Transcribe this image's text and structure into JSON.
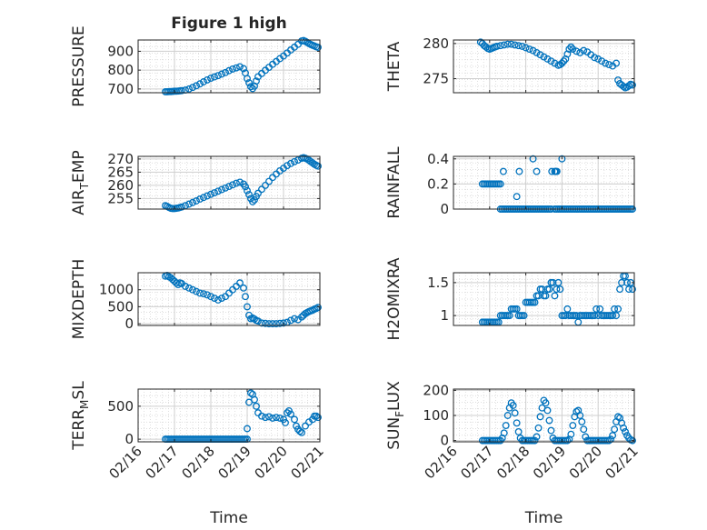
{
  "figure": {
    "title": "Figure 1 high",
    "marker_color": "#0072BD",
    "x_tick_labels": [
      "02/16",
      "02/17",
      "02/18",
      "02/19",
      "02/20",
      "02/21"
    ],
    "x_label": "Time"
  },
  "chart_data": [
    {
      "type": "scatter",
      "ylabel_main": "PRESSURE",
      "ylabel_sub": "",
      "title": "Figure 1 high",
      "xlim": [
        0,
        5
      ],
      "ylim": [
        680,
        960
      ],
      "yticks": [
        700,
        800,
        900
      ],
      "ytick_labels": [
        "700",
        "800",
        "900"
      ],
      "xlabel": "",
      "grid": true,
      "x": [
        0.75,
        0.8,
        0.85,
        0.9,
        0.95,
        1.0,
        1.05,
        1.1,
        1.15,
        1.2,
        1.3,
        1.4,
        1.5,
        1.6,
        1.7,
        1.8,
        1.9,
        2.0,
        2.1,
        2.2,
        2.3,
        2.4,
        2.5,
        2.6,
        2.7,
        2.8,
        2.9,
        2.95,
        3.0,
        3.05,
        3.1,
        3.15,
        3.2,
        3.25,
        3.3,
        3.4,
        3.5,
        3.6,
        3.7,
        3.8,
        3.9,
        4.0,
        4.1,
        4.2,
        4.3,
        4.4,
        4.5,
        4.55,
        4.6,
        4.65,
        4.7,
        4.75,
        4.8,
        4.85,
        4.9,
        4.95
      ],
      "y": [
        685,
        685,
        686,
        686,
        687,
        688,
        688,
        689,
        690,
        691,
        694,
        700,
        708,
        717,
        727,
        738,
        748,
        757,
        764,
        771,
        779,
        787,
        797,
        806,
        812,
        818,
        808,
        785,
        755,
        733,
        712,
        702,
        715,
        742,
        765,
        782,
        799,
        815,
        831,
        846,
        861,
        875,
        891,
        907,
        922,
        937,
        955,
        957,
        953,
        947,
        941,
        936,
        932,
        928,
        924,
        921
      ]
    },
    {
      "type": "scatter",
      "ylabel_main": "THETA",
      "ylabel_sub": "",
      "xlim": [
        0,
        5
      ],
      "ylim": [
        273,
        280.5
      ],
      "yticks": [
        275,
        280
      ],
      "ytick_labels": [
        "275",
        "280"
      ],
      "xlabel": "",
      "grid": true,
      "x": [
        0.75,
        0.8,
        0.85,
        0.9,
        0.95,
        1.0,
        1.05,
        1.1,
        1.15,
        1.2,
        1.3,
        1.4,
        1.5,
        1.6,
        1.7,
        1.8,
        1.9,
        2.0,
        2.1,
        2.2,
        2.3,
        2.4,
        2.5,
        2.6,
        2.7,
        2.8,
        2.9,
        2.95,
        3.0,
        3.05,
        3.1,
        3.15,
        3.2,
        3.25,
        3.3,
        3.4,
        3.5,
        3.6,
        3.7,
        3.8,
        3.9,
        4.0,
        4.1,
        4.2,
        4.3,
        4.4,
        4.5,
        4.55,
        4.6,
        4.65,
        4.7,
        4.75,
        4.8,
        4.85,
        4.9,
        4.95
      ],
      "y": [
        280.2,
        280.0,
        279.7,
        279.5,
        279.3,
        279.2,
        279.3,
        279.4,
        279.5,
        279.6,
        279.7,
        279.8,
        279.9,
        279.9,
        279.8,
        279.7,
        279.6,
        279.4,
        279.2,
        279.0,
        278.7,
        278.4,
        278.1,
        277.8,
        277.5,
        277.2,
        276.9,
        277.0,
        277.2,
        277.5,
        277.8,
        278.5,
        279.2,
        279.5,
        279.2,
        278.9,
        278.7,
        279.0,
        278.8,
        278.4,
        278.0,
        277.8,
        277.5,
        277.2,
        277.0,
        276.8,
        277.2,
        274.8,
        274.3,
        274.1,
        273.9,
        273.7,
        273.8,
        274.0,
        274.2,
        274.1
      ]
    },
    {
      "type": "scatter",
      "ylabel_main": "AIR",
      "ylabel_sub": "T",
      "ylabel_tail": "EMP",
      "xlim": [
        0,
        5
      ],
      "ylim": [
        251,
        271
      ],
      "yticks": [
        255,
        260,
        265,
        270
      ],
      "ytick_labels": [
        "255",
        "260",
        "265",
        "270"
      ],
      "xlabel": "",
      "grid": true,
      "x": [
        0.75,
        0.8,
        0.85,
        0.9,
        0.95,
        1.0,
        1.05,
        1.1,
        1.15,
        1.2,
        1.3,
        1.4,
        1.5,
        1.6,
        1.7,
        1.8,
        1.9,
        2.0,
        2.1,
        2.2,
        2.3,
        2.4,
        2.5,
        2.6,
        2.7,
        2.8,
        2.9,
        2.95,
        3.0,
        3.05,
        3.1,
        3.15,
        3.2,
        3.25,
        3.3,
        3.4,
        3.5,
        3.6,
        3.7,
        3.8,
        3.9,
        4.0,
        4.1,
        4.2,
        4.3,
        4.4,
        4.5,
        4.55,
        4.6,
        4.65,
        4.7,
        4.75,
        4.8,
        4.85,
        4.9,
        4.95
      ],
      "y": [
        252.3,
        252.0,
        251.6,
        251.3,
        251.2,
        251.2,
        251.3,
        251.4,
        251.6,
        251.8,
        252.3,
        252.9,
        253.5,
        254.1,
        254.8,
        255.4,
        256.0,
        256.6,
        257.2,
        257.8,
        258.4,
        259.0,
        259.6,
        260.2,
        260.8,
        261.2,
        260.5,
        259.5,
        258.0,
        256.5,
        255.0,
        253.8,
        254.5,
        255.8,
        257.0,
        258.5,
        260.0,
        261.5,
        263.0,
        264.3,
        265.5,
        266.5,
        267.5,
        268.3,
        269.0,
        269.6,
        270.3,
        270.5,
        270.3,
        270.0,
        269.5,
        269.0,
        268.5,
        268.0,
        267.6,
        267.3
      ]
    },
    {
      "type": "scatter",
      "ylabel_main": "RAINFALL",
      "ylabel_sub": "",
      "xlim": [
        0,
        5
      ],
      "ylim": [
        0,
        0.42
      ],
      "yticks": [
        0,
        0.2,
        0.4
      ],
      "ytick_labels": [
        "0",
        "0.2",
        "0.4"
      ],
      "xlabel": "",
      "grid": true,
      "x": [
        0.8,
        0.85,
        0.9,
        0.95,
        1.0,
        1.05,
        1.1,
        1.15,
        1.2,
        1.25,
        1.3,
        1.3,
        1.35,
        1.4,
        1.45,
        1.5,
        1.55,
        1.6,
        1.65,
        1.7,
        1.75,
        1.8,
        1.85,
        1.9,
        1.95,
        2.0,
        2.05,
        2.1,
        2.15,
        2.2,
        2.25,
        2.3,
        2.35,
        2.4,
        2.45,
        2.5,
        2.55,
        2.6,
        2.65,
        2.7,
        2.8,
        2.85,
        2.9,
        2.95,
        3.0,
        3.05,
        3.1,
        3.15,
        3.2,
        3.25,
        3.3,
        3.35,
        3.4,
        3.45,
        3.5,
        3.55,
        3.6,
        3.65,
        3.7,
        3.75,
        3.8,
        3.85,
        3.9,
        3.95,
        4.0,
        4.05,
        4.1,
        4.15,
        4.2,
        4.25,
        4.3,
        4.35,
        4.4,
        4.45,
        4.5,
        4.55,
        4.6,
        4.65,
        4.7,
        4.75,
        4.8,
        4.85,
        4.9,
        4.95,
        1.38,
        1.75,
        1.82,
        2.2,
        2.3,
        2.72,
        2.8,
        2.83,
        2.86,
        3.0
      ],
      "y": [
        0.2,
        0.2,
        0.2,
        0.2,
        0.2,
        0.2,
        0.2,
        0.2,
        0.2,
        0.2,
        0.2,
        0,
        0,
        0,
        0,
        0,
        0,
        0,
        0,
        0,
        0,
        0,
        0,
        0,
        0,
        0,
        0,
        0,
        0,
        0,
        0,
        0,
        0,
        0,
        0,
        0,
        0,
        0,
        0,
        0,
        0,
        0,
        0,
        0,
        0,
        0,
        0,
        0,
        0,
        0,
        0,
        0,
        0,
        0,
        0,
        0,
        0,
        0,
        0,
        0,
        0,
        0,
        0,
        0,
        0,
        0,
        0,
        0,
        0,
        0,
        0,
        0,
        0,
        0,
        0,
        0,
        0,
        0,
        0,
        0,
        0,
        0,
        0,
        0,
        0.3,
        0.1,
        0.3,
        0.4,
        0.3,
        0.3,
        0.3,
        0.3,
        0.3,
        0.4
      ]
    },
    {
      "type": "scatter",
      "ylabel_main": "MIXDEPTH",
      "ylabel_sub": "",
      "xlim": [
        0,
        5
      ],
      "ylim": [
        -50,
        1500
      ],
      "yticks": [
        0,
        500,
        1000
      ],
      "ytick_labels": [
        "0",
        "500",
        "1000"
      ],
      "xlabel": "",
      "grid": true,
      "x": [
        0.75,
        0.8,
        0.85,
        0.9,
        0.95,
        1.0,
        1.05,
        1.1,
        1.15,
        1.2,
        1.3,
        1.4,
        1.5,
        1.6,
        1.7,
        1.8,
        1.9,
        2.0,
        2.1,
        2.2,
        2.3,
        2.4,
        2.5,
        2.6,
        2.7,
        2.8,
        2.9,
        2.95,
        3.0,
        3.05,
        3.1,
        3.15,
        3.2,
        3.25,
        3.3,
        3.4,
        3.5,
        3.6,
        3.7,
        3.8,
        3.9,
        4.0,
        4.1,
        4.2,
        4.3,
        4.4,
        4.5,
        4.55,
        4.6,
        4.65,
        4.7,
        4.75,
        4.8,
        4.85,
        4.9,
        4.95
      ],
      "y": [
        1400,
        1420,
        1380,
        1350,
        1300,
        1250,
        1200,
        1150,
        1200,
        1180,
        1100,
        1050,
        1000,
        950,
        900,
        880,
        850,
        800,
        750,
        700,
        750,
        800,
        900,
        1000,
        1100,
        1200,
        1050,
        800,
        500,
        250,
        150,
        170,
        140,
        100,
        80,
        20,
        10,
        0,
        0,
        0,
        10,
        20,
        40,
        100,
        150,
        120,
        200,
        250,
        300,
        330,
        360,
        380,
        400,
        430,
        450,
        480
      ]
    },
    {
      "type": "scatter",
      "ylabel_main": "H2OMIXRA",
      "ylabel_sub": "",
      "xlim": [
        0,
        5
      ],
      "ylim": [
        0.85,
        1.65
      ],
      "yticks": [
        1,
        1.5
      ],
      "ytick_labels": [
        "1",
        "1.5"
      ],
      "xlabel": "",
      "grid": true,
      "x": [
        0.8,
        0.85,
        0.9,
        0.95,
        1.0,
        1.05,
        1.1,
        1.15,
        1.2,
        1.25,
        1.3,
        1.35,
        1.4,
        1.45,
        1.5,
        1.55,
        1.6,
        1.65,
        1.7,
        1.75,
        1.8,
        1.85,
        1.9,
        1.95,
        2.0,
        2.05,
        2.1,
        2.15,
        2.2,
        2.25,
        2.3,
        2.35,
        2.4,
        2.45,
        2.5,
        2.55,
        2.6,
        2.65,
        2.7,
        2.75,
        2.8,
        2.85,
        2.9,
        2.95,
        3.0,
        3.05,
        3.1,
        3.15,
        3.2,
        3.25,
        3.3,
        3.35,
        3.4,
        3.45,
        3.5,
        3.55,
        3.6,
        3.65,
        3.7,
        3.75,
        3.8,
        3.85,
        3.9,
        3.95,
        4.0,
        4.05,
        4.1,
        4.15,
        4.2,
        4.25,
        4.3,
        4.35,
        4.4,
        4.45,
        4.5,
        4.55,
        4.6,
        4.65,
        4.7,
        4.75,
        4.8,
        4.85,
        4.9,
        4.95
      ],
      "y": [
        0.9,
        0.9,
        0.9,
        0.9,
        0.9,
        0.9,
        0.9,
        0.9,
        0.9,
        0.9,
        1.0,
        1.0,
        1.0,
        1.0,
        1.0,
        1.0,
        1.1,
        1.1,
        1.1,
        1.1,
        1.0,
        1.0,
        1.0,
        1.0,
        1.2,
        1.2,
        1.2,
        1.2,
        1.2,
        1.2,
        1.3,
        1.3,
        1.4,
        1.4,
        1.3,
        1.3,
        1.4,
        1.4,
        1.5,
        1.5,
        1.3,
        1.4,
        1.5,
        1.4,
        1.0,
        1.0,
        1.0,
        1.1,
        1.0,
        1.0,
        1.0,
        1.0,
        1.0,
        0.9,
        1.0,
        1.0,
        1.0,
        1.0,
        1.0,
        1.0,
        1.0,
        1.0,
        1.0,
        1.1,
        1.0,
        1.1,
        1.0,
        1.0,
        1.0,
        1.0,
        1.0,
        1.0,
        1.0,
        1.1,
        1.0,
        1.1,
        1.4,
        1.5,
        1.6,
        1.6,
        1.5,
        1.4,
        1.5,
        1.4
      ]
    },
    {
      "type": "scatter",
      "ylabel_main": "TERR",
      "ylabel_sub": "M",
      "ylabel_tail": "SL",
      "xlim": [
        0,
        5
      ],
      "ylim": [
        -40,
        760
      ],
      "yticks": [
        0,
        500
      ],
      "ytick_labels": [
        "0",
        "500"
      ],
      "xlabel": "Time",
      "grid": true,
      "x": [
        0.75,
        0.8,
        0.85,
        0.9,
        0.95,
        1.0,
        1.05,
        1.1,
        1.15,
        1.2,
        1.25,
        1.3,
        1.35,
        1.4,
        1.45,
        1.5,
        1.55,
        1.6,
        1.65,
        1.7,
        1.75,
        1.8,
        1.85,
        1.9,
        1.95,
        2.0,
        2.05,
        2.1,
        2.15,
        2.2,
        2.25,
        2.3,
        2.35,
        2.4,
        2.45,
        2.5,
        2.55,
        2.6,
        2.65,
        2.7,
        2.75,
        2.8,
        2.85,
        2.9,
        2.95,
        3.0,
        3.0,
        3.05,
        3.1,
        3.15,
        3.2,
        3.25,
        3.3,
        3.4,
        3.5,
        3.6,
        3.7,
        3.8,
        3.9,
        4.0,
        4.05,
        4.1,
        4.15,
        4.2,
        4.3,
        4.35,
        4.4,
        4.45,
        4.5,
        4.6,
        4.7,
        4.8,
        4.85,
        4.9,
        4.95
      ],
      "y": [
        0,
        0,
        0,
        0,
        0,
        0,
        0,
        0,
        0,
        0,
        0,
        0,
        0,
        0,
        0,
        0,
        0,
        0,
        0,
        0,
        0,
        0,
        0,
        0,
        0,
        0,
        0,
        0,
        0,
        0,
        0,
        0,
        0,
        0,
        0,
        0,
        0,
        0,
        0,
        0,
        0,
        0,
        0,
        0,
        0,
        0,
        160,
        560,
        700,
        680,
        600,
        500,
        400,
        350,
        330,
        340,
        320,
        330,
        320,
        300,
        250,
        400,
        430,
        380,
        300,
        200,
        150,
        120,
        100,
        200,
        260,
        300,
        350,
        350,
        330
      ]
    },
    {
      "type": "scatter",
      "ylabel_main": "SUN",
      "ylabel_sub": "F",
      "ylabel_tail": "LUX",
      "xlim": [
        0,
        5
      ],
      "ylim": [
        -5,
        205
      ],
      "yticks": [
        0,
        100,
        200
      ],
      "ytick_labels": [
        "0",
        "100",
        "200"
      ],
      "xlabel": "Time",
      "grid": true,
      "x": [
        0.8,
        0.85,
        0.9,
        0.95,
        1.0,
        1.05,
        1.1,
        1.15,
        1.2,
        1.25,
        1.3,
        1.35,
        1.4,
        1.45,
        1.5,
        1.55,
        1.6,
        1.65,
        1.7,
        1.75,
        1.8,
        1.85,
        1.9,
        1.95,
        2.0,
        2.05,
        2.1,
        2.15,
        2.2,
        2.25,
        2.3,
        2.35,
        2.4,
        2.45,
        2.5,
        2.55,
        2.6,
        2.65,
        2.7,
        2.75,
        2.8,
        2.85,
        2.9,
        2.95,
        3.0,
        3.05,
        3.1,
        3.15,
        3.2,
        3.25,
        3.3,
        3.35,
        3.4,
        3.45,
        3.5,
        3.55,
        3.6,
        3.65,
        3.7,
        3.75,
        3.8,
        3.85,
        3.9,
        3.95,
        4.0,
        4.05,
        4.1,
        4.15,
        4.2,
        4.25,
        4.3,
        4.35,
        4.4,
        4.45,
        4.5,
        4.55,
        4.6,
        4.65,
        4.7,
        4.75,
        4.8,
        4.85,
        4.9,
        4.95
      ],
      "y": [
        0,
        0,
        0,
        0,
        0,
        0,
        0,
        0,
        0,
        0,
        0,
        10,
        30,
        60,
        100,
        130,
        150,
        140,
        110,
        70,
        35,
        10,
        0,
        0,
        0,
        0,
        0,
        0,
        0,
        0,
        15,
        50,
        95,
        130,
        160,
        150,
        120,
        80,
        40,
        10,
        0,
        0,
        0,
        0,
        0,
        0,
        0,
        0,
        5,
        25,
        60,
        95,
        115,
        120,
        100,
        75,
        45,
        15,
        0,
        0,
        0,
        0,
        0,
        0,
        0,
        0,
        0,
        0,
        0,
        0,
        0,
        5,
        20,
        45,
        75,
        95,
        90,
        70,
        50,
        35,
        20,
        10,
        3,
        0
      ]
    }
  ]
}
